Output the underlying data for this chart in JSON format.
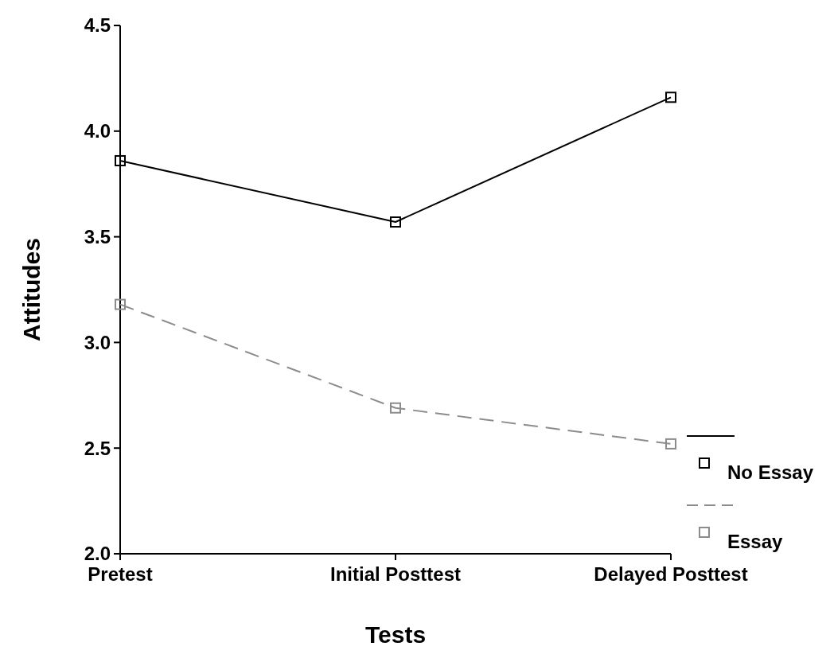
{
  "chart_data": {
    "type": "line",
    "xlabel": "Tests",
    "ylabel": "Attitudes",
    "categories": [
      "Pretest",
      "Initial Posttest",
      "Delayed Posttest"
    ],
    "series": [
      {
        "name": "No Essay",
        "color": "#000000",
        "line_style": "solid",
        "values": [
          3.86,
          3.57,
          4.16
        ]
      },
      {
        "name": "Essay",
        "color": "#8c8c8c",
        "line_style": "dashed",
        "values": [
          3.18,
          2.69,
          2.52
        ]
      }
    ],
    "ylim": [
      2.0,
      4.5
    ],
    "yticks": [
      {
        "value": 2,
        "label": "2.0"
      },
      {
        "value": 2.5,
        "label": "2.5"
      },
      {
        "value": 3,
        "label": "3.0"
      },
      {
        "value": 3.5,
        "label": "3.5"
      },
      {
        "value": 4,
        "label": "4.0"
      },
      {
        "value": 4.5,
        "label": "4.5"
      }
    ],
    "marker": "square",
    "grid": false,
    "legend": "bottom right"
  }
}
